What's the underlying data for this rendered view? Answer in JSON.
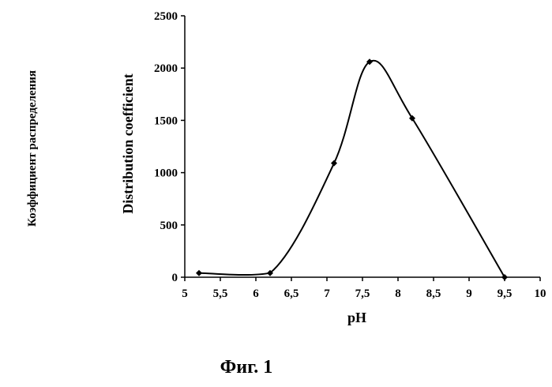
{
  "chart_data": {
    "type": "line",
    "smoothed": true,
    "markers": "diamond",
    "line_color": "#000000",
    "x": [
      5.2,
      6.2,
      7.1,
      7.6,
      8.2,
      9.5
    ],
    "y": [
      40,
      40,
      1090,
      2060,
      1520,
      0
    ],
    "xlabel": "pH",
    "ylabel": "Distribution coefficient",
    "side_label": "Коэффициент распределения",
    "caption": "Фиг. 1",
    "xlim": [
      5,
      10
    ],
    "ylim": [
      0,
      2500
    ],
    "x_ticks": [
      "5",
      "5,5",
      "6",
      "6,5",
      "7",
      "7,5",
      "8",
      "8,5",
      "9",
      "9,5",
      "10"
    ],
    "y_ticks": [
      "0",
      "500",
      "1000",
      "1500",
      "2000",
      "2500"
    ],
    "grid": false,
    "legend": "none"
  }
}
